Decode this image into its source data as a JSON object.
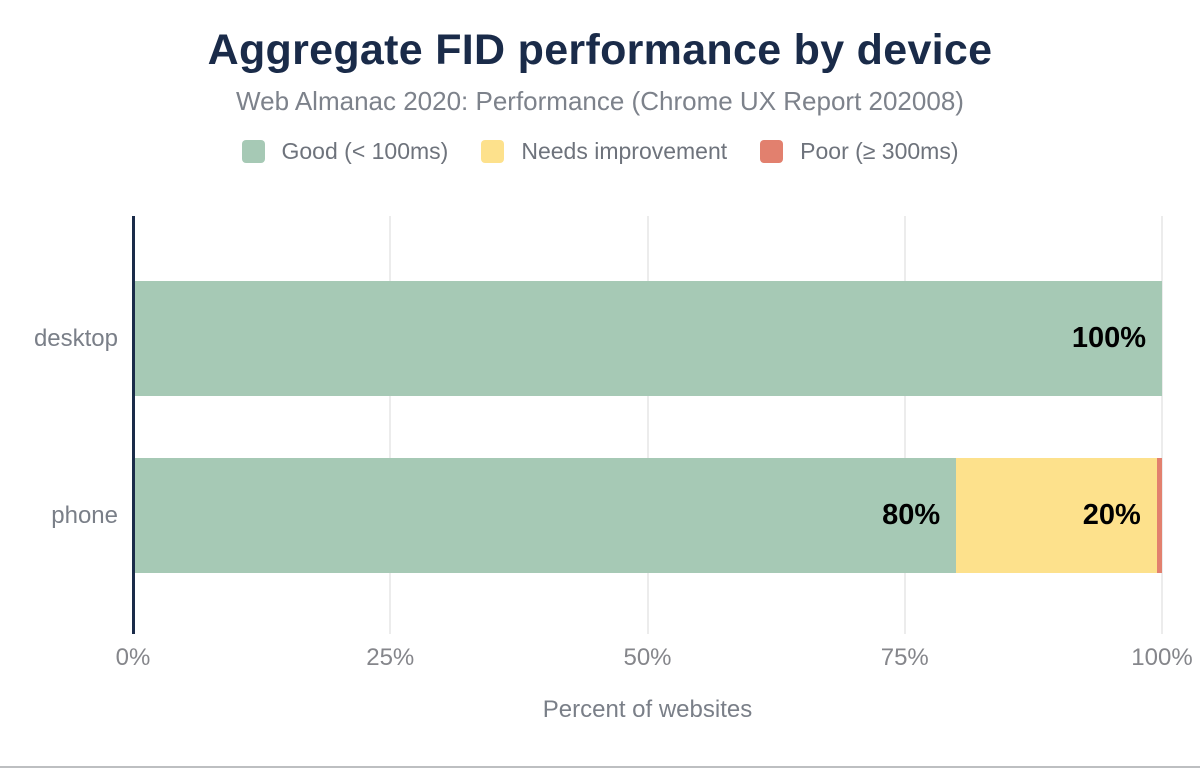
{
  "header": {
    "title": "Aggregate FID performance by device",
    "subtitle": "Web Almanac 2020: Performance (Chrome UX Report 202008)"
  },
  "legend": {
    "items": [
      {
        "label": "Good (< 100ms)",
        "color": "#a6c9b5"
      },
      {
        "label": "Needs improvement",
        "color": "#fde18c"
      },
      {
        "label": "Poor (≥ 300ms)",
        "color": "#e2806e"
      }
    ]
  },
  "axes": {
    "x_title": "Percent of websites",
    "x_ticks": [
      {
        "label": "0%",
        "value": 0
      },
      {
        "label": "25%",
        "value": 25
      },
      {
        "label": "50%",
        "value": 50
      },
      {
        "label": "75%",
        "value": 75
      },
      {
        "label": "100%",
        "value": 100
      }
    ],
    "grid_values": [
      25,
      50,
      75,
      100
    ],
    "xlim": [
      0,
      100
    ]
  },
  "chart_data": {
    "type": "bar",
    "orientation": "horizontal",
    "stacked": true,
    "title": "Aggregate FID performance by device",
    "subtitle": "Web Almanac 2020: Performance (Chrome UX Report 202008)",
    "xlabel": "Percent of websites",
    "ylabel": "",
    "xlim": [
      0,
      100
    ],
    "grid": true,
    "legend_position": "top",
    "categories": [
      "desktop",
      "phone"
    ],
    "series": [
      {
        "name": "Good (< 100ms)",
        "color": "#a6c9b5",
        "values": [
          100,
          80
        ],
        "display_labels": [
          "100%",
          "80%"
        ]
      },
      {
        "name": "Needs improvement",
        "color": "#fde18c",
        "values": [
          0,
          19.5
        ],
        "display_labels": [
          "",
          "20%"
        ]
      },
      {
        "name": "Poor (≥ 300ms)",
        "color": "#e2806e",
        "values": [
          0,
          0.5
        ],
        "display_labels": [
          "",
          ""
        ]
      }
    ]
  }
}
